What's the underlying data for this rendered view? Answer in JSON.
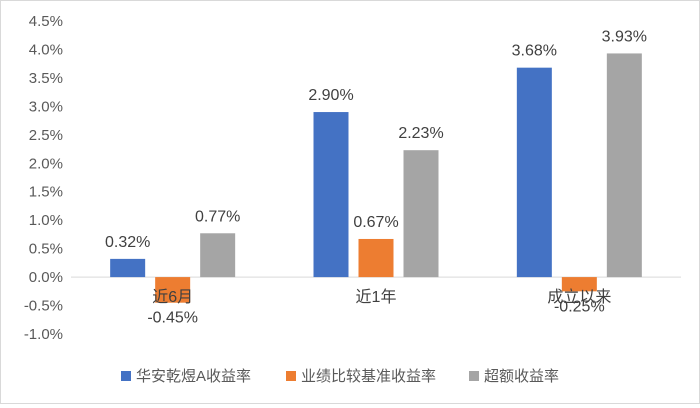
{
  "chart_data": {
    "type": "bar",
    "title": "",
    "xlabel": "",
    "ylabel": "",
    "categories": [
      "近6月",
      "近1年",
      "成立以来"
    ],
    "series": [
      {
        "name": "华安乾煜A收益率",
        "color": "#4472C4",
        "values": [
          0.32,
          2.9,
          3.68
        ],
        "labels": [
          "0.32%",
          "2.90%",
          "3.68%"
        ]
      },
      {
        "name": "业绩比较基准收益率",
        "color": "#ED7D31",
        "values": [
          -0.45,
          0.67,
          -0.25
        ],
        "labels": [
          "-0.45%",
          "0.67%",
          "-0.25%"
        ]
      },
      {
        "name": "超额收益率",
        "color": "#A5A5A5",
        "values": [
          0.77,
          2.23,
          3.93
        ],
        "labels": [
          "0.77%",
          "2.23%",
          "3.93%"
        ]
      }
    ],
    "ylim": [
      -1.0,
      4.5
    ],
    "yticks": [
      4.5,
      4.0,
      3.5,
      3.0,
      2.5,
      2.0,
      1.5,
      1.0,
      0.5,
      0.0,
      -0.5,
      -1.0
    ],
    "ytick_labels": [
      "4.5%",
      "4.0%",
      "3.5%",
      "3.0%",
      "2.5%",
      "2.0%",
      "1.5%",
      "1.0%",
      "0.5%",
      "0.0%",
      "-0.5%",
      "-1.0%"
    ],
    "grid": false,
    "legend_position": "bottom"
  }
}
